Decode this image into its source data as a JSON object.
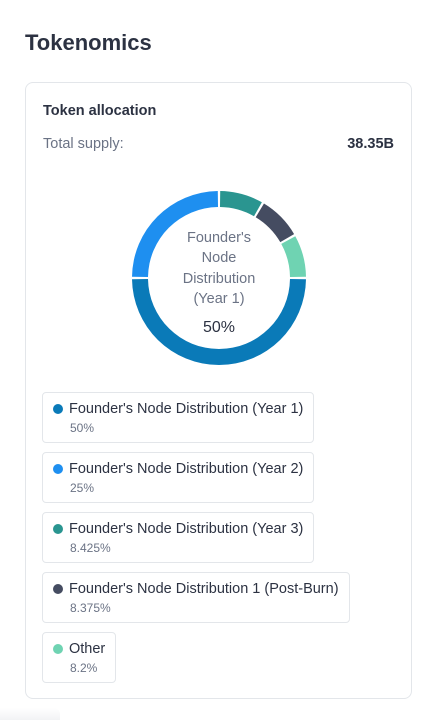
{
  "page": {
    "title": "Tokenomics"
  },
  "card": {
    "title": "Token allocation",
    "supply_label": "Total supply:",
    "supply_value": "38.35B"
  },
  "donut": {
    "center_label": "Founder's Node Distribution (Year 1)",
    "center_value": "50%"
  },
  "allocations": [
    {
      "name": "Founder's Node Distribution (Year 1)",
      "percent_label": "50%",
      "percent": 50,
      "color": "#0a7ab8"
    },
    {
      "name": "Founder's Node Distribution (Year 2)",
      "percent_label": "25%",
      "percent": 25,
      "color": "#1e8ff0"
    },
    {
      "name": "Founder's Node Distribution (Year 3)",
      "percent_label": "8.425%",
      "percent": 8.425,
      "color": "#2a9590"
    },
    {
      "name": "Founder's Node Distribution 1 (Post-Burn)",
      "percent_label": "8.375%",
      "percent": 8.375,
      "color": "#454c61"
    },
    {
      "name": "Other",
      "percent_label": "8.2%",
      "percent": 8.2,
      "color": "#6fd3b2"
    }
  ]
}
